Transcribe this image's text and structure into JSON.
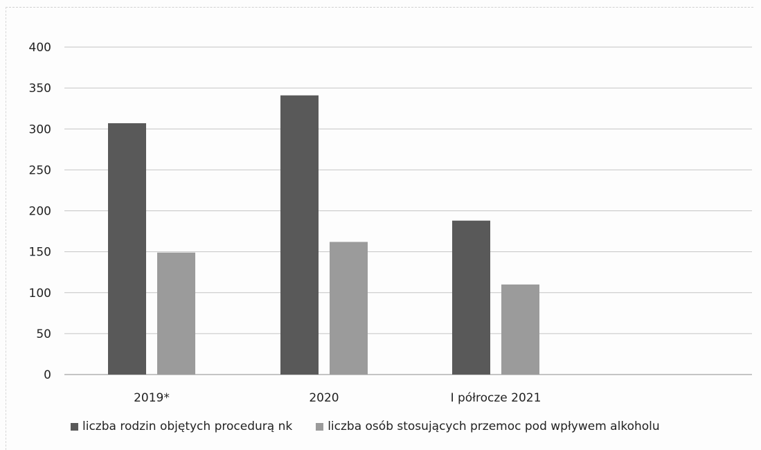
{
  "chart_data": {
    "type": "bar",
    "title": "",
    "xlabel": "",
    "ylabel": "",
    "categories": [
      "2019*",
      "2020",
      "I półrocze 2021"
    ],
    "series": [
      {
        "name": "liczba rodzin objętych procedurą nk",
        "color": "#595959",
        "values": [
          307,
          341,
          188
        ]
      },
      {
        "name": "liczba osób stosujących przemoc pod wpływem alkoholu",
        "color": "#9b9b9b",
        "values": [
          149,
          162,
          110
        ]
      }
    ],
    "ylim": [
      0,
      400
    ],
    "yticks": [
      "0",
      "50",
      "100",
      "150",
      "200",
      "250",
      "300",
      "350",
      "400"
    ],
    "grid": true,
    "legend_position": "bottom"
  }
}
